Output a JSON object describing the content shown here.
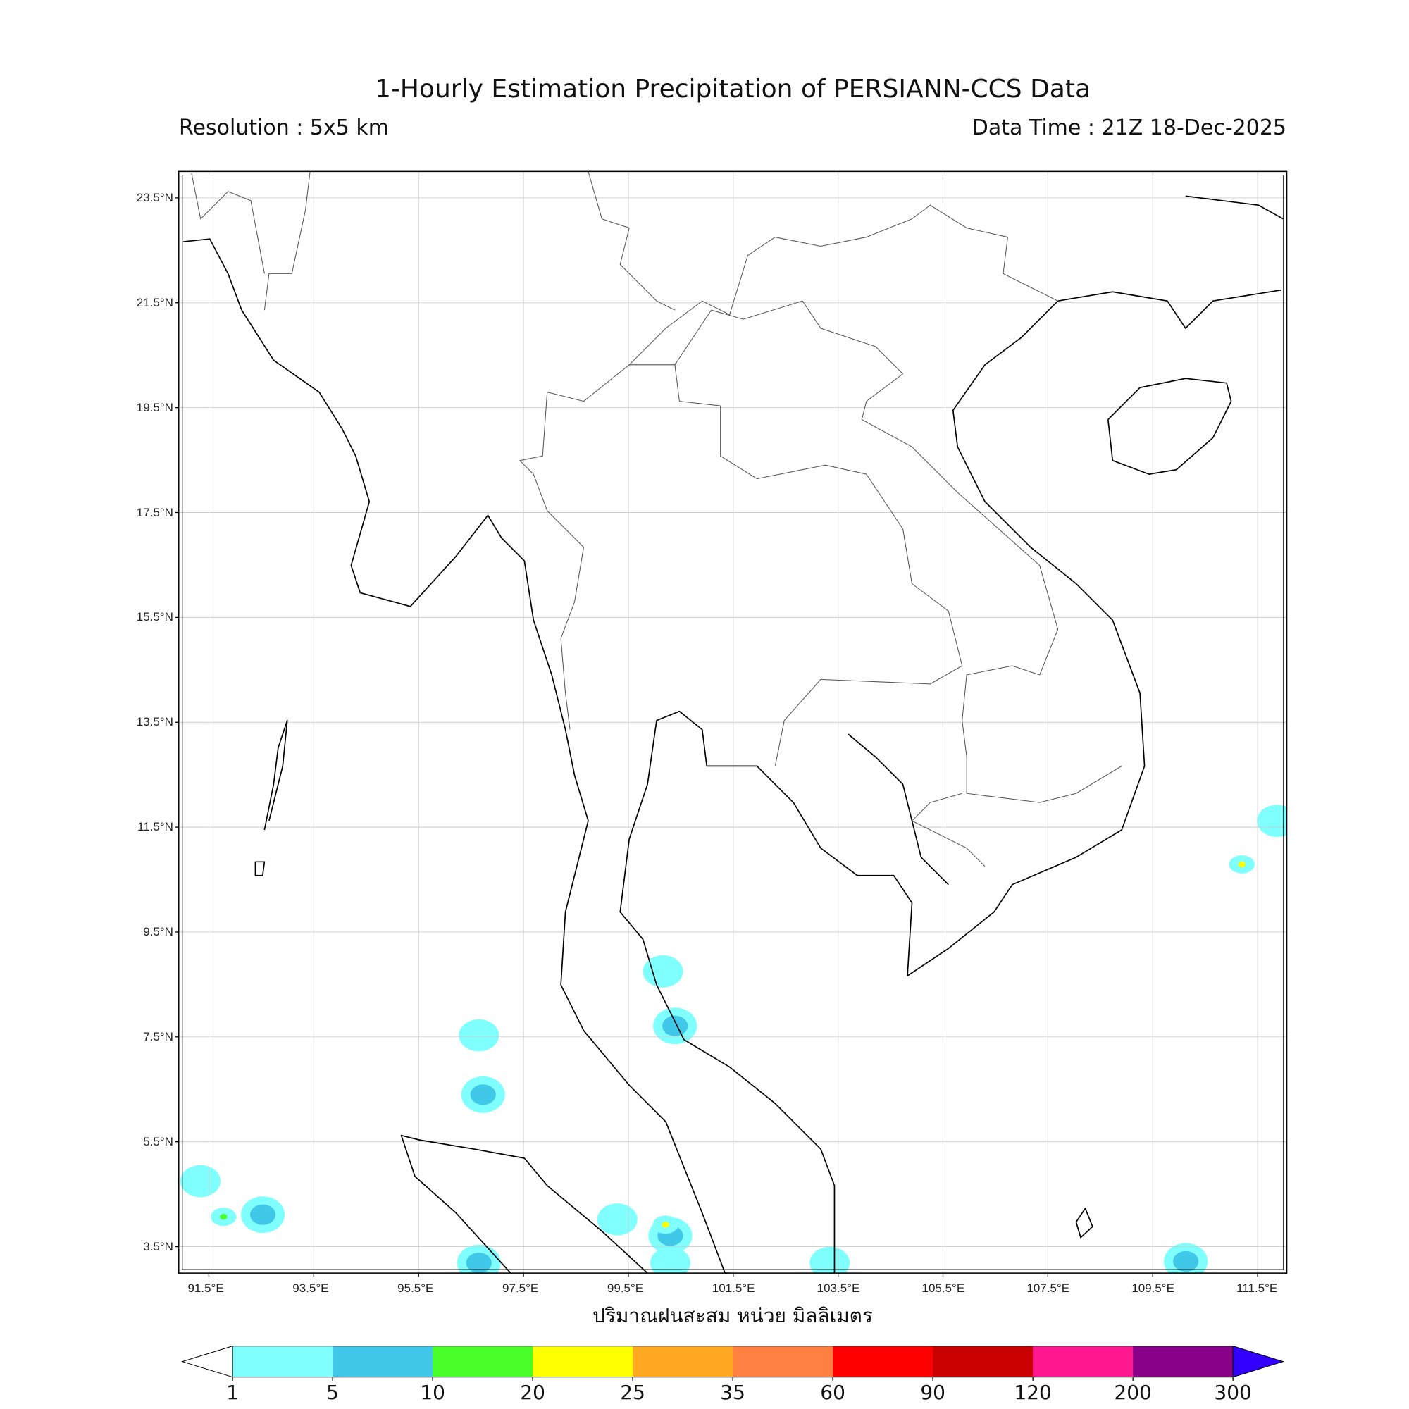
{
  "header": {
    "title": "1-Hourly Estimation Precipitation of PERSIANN-CCS Data",
    "resolution": "Resolution : 5x5 km",
    "data_time": "Data Time : 21Z 18-Dec-2025"
  },
  "map": {
    "lat_ticks": [
      23.5,
      21.5,
      19.5,
      17.5,
      15.5,
      13.5,
      11.5,
      9.5,
      7.5,
      5.5,
      3.5
    ],
    "lat_labels": [
      "23.5°N",
      "21.5°N",
      "19.5°N",
      "17.5°N",
      "15.5°N",
      "13.5°N",
      "11.5°N",
      "9.5°N",
      "7.5°N",
      "5.5°N",
      "3.5°N"
    ],
    "lon_ticks": [
      91.5,
      93.5,
      95.5,
      97.5,
      99.5,
      101.5,
      103.5,
      105.5,
      107.5,
      109.5,
      111.5
    ],
    "lon_labels": [
      "91.5°E",
      "93.5°E",
      "95.5°E",
      "97.5°E",
      "99.5°E",
      "101.5°E",
      "103.5°E",
      "105.5°E",
      "107.5°E",
      "109.5°E",
      "111.5°E"
    ],
    "extent": {
      "lon_min": 90.94,
      "lon_max": 112.05,
      "lat_min": 3.02,
      "lat_max": 24.01
    },
    "grid": true,
    "rain_cells": [
      {
        "lon": 91.34,
        "lat": 4.75,
        "mm": 2
      },
      {
        "lon": 92.53,
        "lat": 4.11,
        "mm": 6
      },
      {
        "lon": 91.78,
        "lat": 4.07,
        "mm": 12
      },
      {
        "lon": 100.3,
        "lat": 3.71,
        "mm": 6
      },
      {
        "lon": 100.3,
        "lat": 3.19,
        "mm": 2
      },
      {
        "lon": 100.21,
        "lat": 3.92,
        "mm": 22
      },
      {
        "lon": 103.34,
        "lat": 3.19,
        "mm": 2
      },
      {
        "lon": 96.65,
        "lat": 3.19,
        "mm": 6
      },
      {
        "lon": 99.29,
        "lat": 4.02,
        "mm": 2
      },
      {
        "lon": 100.39,
        "lat": 7.71,
        "mm": 6
      },
      {
        "lon": 96.65,
        "lat": 7.53,
        "mm": 2
      },
      {
        "lon": 96.73,
        "lat": 6.4,
        "mm": 6
      },
      {
        "lon": 100.16,
        "lat": 8.75,
        "mm": 2
      },
      {
        "lon": 111.87,
        "lat": 11.62,
        "mm": 2
      },
      {
        "lon": 111.2,
        "lat": 10.79,
        "mm": 22
      },
      {
        "lon": 110.13,
        "lat": 3.22,
        "mm": 6
      }
    ]
  },
  "xlabel": "ปริมาณฝนสะสม หน่วย มิลลิเมตร",
  "colorbar": {
    "levels": [
      "1",
      "5",
      "10",
      "20",
      "25",
      "35",
      "60",
      "90",
      "120",
      "200",
      "300"
    ],
    "colors": [
      "#80ffff",
      "#40c8e8",
      "#48ff28",
      "#ffff00",
      "#ffa820",
      "#ff8040",
      "#ff0000",
      "#c80000",
      "#ff1890",
      "#880088"
    ],
    "under_color": "#ffffff",
    "over_color": "#3300ff"
  }
}
